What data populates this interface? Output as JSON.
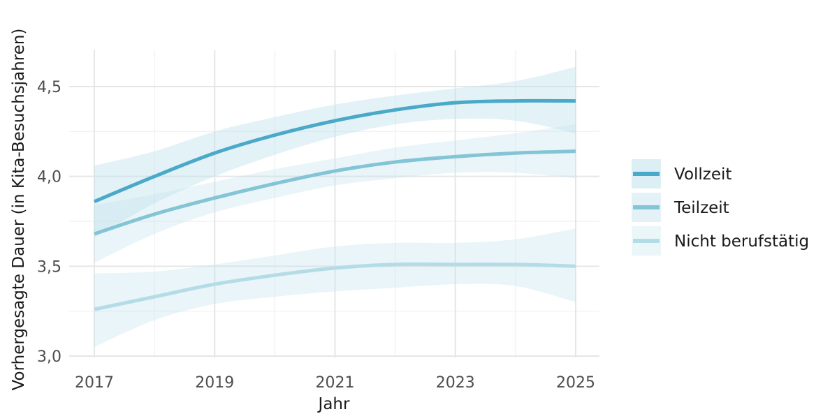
{
  "chart_data": {
    "type": "line",
    "title": "",
    "xlabel": "Jahr",
    "ylabel": "Vorhergesagte Dauer (in Kita-Besuchsjahren)",
    "xlim": [
      2017,
      2025
    ],
    "ylim": [
      3.0,
      4.6
    ],
    "x_ticks": [
      "2017",
      "2019",
      "2021",
      "2023",
      "2025"
    ],
    "y_ticks": [
      "3,0",
      "3,5",
      "4,0",
      "4,5"
    ],
    "grid": true,
    "legend_position": "right",
    "x": [
      2017,
      2018,
      2019,
      2020,
      2021,
      2022,
      2023,
      2024,
      2025
    ],
    "series": [
      {
        "name": "Vollzeit",
        "color": "#4aa9c8",
        "band_opacity": 0.28,
        "values": [
          3.86,
          4.0,
          4.13,
          4.23,
          4.31,
          4.37,
          4.41,
          4.42,
          4.42
        ],
        "lower": [
          3.66,
          3.85,
          4.0,
          4.12,
          4.22,
          4.29,
          4.32,
          4.31,
          4.24
        ],
        "upper": [
          4.06,
          4.14,
          4.25,
          4.33,
          4.4,
          4.45,
          4.49,
          4.53,
          4.61
        ]
      },
      {
        "name": "Teilzeit",
        "color": "#83c4d6",
        "band_opacity": 0.2,
        "values": [
          3.68,
          3.79,
          3.88,
          3.96,
          4.03,
          4.08,
          4.11,
          4.13,
          4.14
        ],
        "lower": [
          3.52,
          3.68,
          3.8,
          3.88,
          3.95,
          3.99,
          4.02,
          4.02,
          3.99
        ],
        "upper": [
          3.84,
          3.9,
          3.97,
          4.04,
          4.1,
          4.16,
          4.2,
          4.24,
          4.29
        ]
      },
      {
        "name": "Nicht berufstätig",
        "color": "#b4dce7",
        "band_opacity": 0.2,
        "values": [
          3.26,
          3.33,
          3.4,
          3.45,
          3.49,
          3.51,
          3.51,
          3.51,
          3.5
        ],
        "lower": [
          3.05,
          3.2,
          3.29,
          3.33,
          3.36,
          3.38,
          3.4,
          3.39,
          3.3
        ],
        "upper": [
          3.46,
          3.47,
          3.51,
          3.56,
          3.61,
          3.63,
          3.63,
          3.65,
          3.71
        ]
      }
    ]
  }
}
